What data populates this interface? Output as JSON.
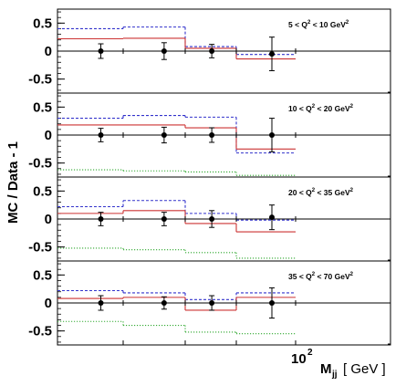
{
  "chart_data": {
    "type": "step",
    "ylabel": "MC / Data - 1",
    "xlabel_main": "M",
    "xlabel_sub": "jj",
    "xlabel_unit": "[ GeV ]",
    "x_tick_label_base": "10",
    "x_tick_label_exp": "2",
    "y_tick_labels": [
      "0.5",
      "0",
      "-0.5"
    ],
    "ylim": [
      -0.75,
      0.75
    ],
    "bin_index_edges": [
      0,
      1,
      2,
      3,
      4
    ],
    "colors": {
      "red": "#cc3333",
      "blue": "#3333cc",
      "green": "#33aa33",
      "points": "#000000"
    },
    "panels": [
      {
        "label_pre": "5 < Q",
        "label_exp": "2",
        "label_post": " < 10 GeV",
        "label_unit_exp": "2",
        "red": [
          0.22,
          0.23,
          0.05,
          -0.14
        ],
        "blue": [
          0.4,
          0.43,
          0.08,
          -0.06
        ],
        "green": [
          null,
          null,
          null,
          null
        ],
        "points": [
          {
            "x": 0.66,
            "y": 0.0,
            "err": 0.13
          },
          {
            "x": 1.66,
            "y": 0.0,
            "err": 0.15
          },
          {
            "x": 2.52,
            "y": 0.0,
            "err": 0.12
          },
          {
            "x": 3.6,
            "y": -0.05,
            "err": 0.3
          }
        ]
      },
      {
        "label_pre": "10 < Q",
        "label_exp": "2",
        "label_post": " < 20 GeV",
        "label_unit_exp": "2",
        "red": [
          0.18,
          0.18,
          0.13,
          -0.25
        ],
        "blue": [
          0.3,
          0.35,
          0.32,
          -0.32
        ],
        "green": [
          -0.62,
          -0.64,
          -0.66,
          -0.72
        ],
        "points": [
          {
            "x": 0.66,
            "y": 0.0,
            "err": 0.12
          },
          {
            "x": 1.66,
            "y": 0.0,
            "err": 0.14
          },
          {
            "x": 2.52,
            "y": 0.0,
            "err": 0.13
          },
          {
            "x": 3.6,
            "y": 0.0,
            "err": 0.3
          }
        ]
      },
      {
        "label_pre": "20 < Q",
        "label_exp": "2",
        "label_post": " < 35 GeV",
        "label_unit_exp": "2",
        "red": [
          0.1,
          0.15,
          -0.08,
          -0.23
        ],
        "blue": [
          0.22,
          0.33,
          0.1,
          -0.02
        ],
        "green": [
          -0.52,
          -0.55,
          -0.6,
          -0.7
        ],
        "points": [
          {
            "x": 0.66,
            "y": 0.0,
            "err": 0.12
          },
          {
            "x": 1.66,
            "y": 0.0,
            "err": 0.12
          },
          {
            "x": 2.52,
            "y": 0.0,
            "err": 0.15
          },
          {
            "x": 3.6,
            "y": 0.03,
            "err": 0.22
          }
        ]
      },
      {
        "label_pre": "35 < Q",
        "label_exp": "2",
        "label_post": " < 70 GeV",
        "label_unit_exp": "2",
        "red": [
          0.08,
          0.1,
          -0.13,
          0.1
        ],
        "blue": [
          0.22,
          0.18,
          0.06,
          0.18
        ],
        "green": [
          -0.33,
          -0.4,
          -0.52,
          -0.55
        ],
        "points": [
          {
            "x": 0.66,
            "y": 0.0,
            "err": 0.13
          },
          {
            "x": 1.66,
            "y": 0.0,
            "err": 0.11
          },
          {
            "x": 2.52,
            "y": 0.0,
            "err": 0.13
          },
          {
            "x": 3.6,
            "y": 0.0,
            "err": 0.27
          }
        ]
      }
    ]
  }
}
